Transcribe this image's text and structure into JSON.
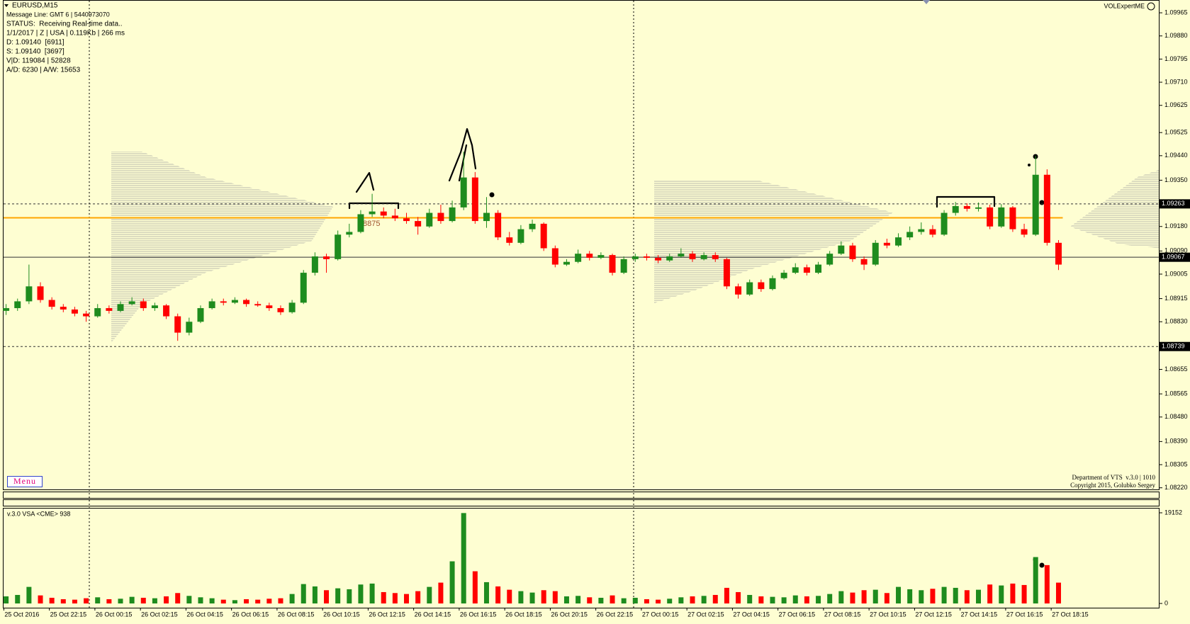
{
  "chart_data": {
    "type": "candlestick",
    "title": "EURUSD,M15",
    "info_lines": [
      "Message Line: GMT 6 | 5440973070",
      "STATUS:  Receiving Real-time data..",
      "1/1/2017 | Z | USA | 0.119Kb | 266 ms",
      "D: 1.09140  [6911]",
      "S: 1.09140  [3697]",
      "V|D: 119084 | 52828",
      "A/D: 6230 | A/W: 15653"
    ],
    "indicator_title": "VOLExpertME",
    "footer_lines": [
      "Department of VTS  v.3.0 | 1010",
      "Copyright 2015, Golubko Sergey"
    ],
    "menu_label": "Menu",
    "annotation": "8875",
    "ylim": [
      1.08214,
      1.10012
    ],
    "yticks": [
      1.09965,
      {
        "value": 1.0988,
        "label": "1.09880"
      },
      1.09795,
      {
        "value": 1.0971,
        "label": "1.09710"
      },
      1.09625,
      1.09525,
      {
        "value": 1.0944,
        "label": "1.09440"
      },
      {
        "value": 1.0935,
        "label": "1.09350"
      },
      {
        "value": 1.0918,
        "label": "1.09180"
      },
      {
        "value": 1.0909,
        "label": "1.09090"
      },
      1.09005,
      1.08915,
      {
        "value": 1.0883,
        "label": "1.08830"
      },
      1.08655,
      1.08565,
      {
        "value": 1.0848,
        "label": "1.08480"
      },
      {
        "value": 1.0839,
        "label": "1.08390"
      },
      1.08305,
      {
        "value": 1.0822,
        "label": "1.08220"
      }
    ],
    "markers": [
      1.09263,
      1.09067,
      1.08739
    ],
    "marker_styles": [
      "dashed",
      "solid",
      "dashed"
    ],
    "level_lines": [
      {
        "value": 1.09212,
        "color": "#ffa500"
      }
    ],
    "up_color": "#1e8c1e",
    "down_color": "#ff0000",
    "candles": [
      [
        1.0887,
        1.08895,
        1.08855,
        1.0888
      ],
      [
        1.0888,
        1.08915,
        1.0887,
        1.08905
      ],
      [
        1.08905,
        1.0904,
        1.08895,
        1.0896
      ],
      [
        1.0896,
        1.08975,
        1.089,
        1.0891
      ],
      [
        1.0891,
        1.0892,
        1.08875,
        1.08885
      ],
      [
        1.08885,
        1.08895,
        1.08865,
        1.08875
      ],
      [
        1.08875,
        1.08885,
        1.0885,
        1.0886
      ],
      [
        1.0886,
        1.0887,
        1.0883,
        1.0885
      ],
      [
        1.0885,
        1.08895,
        1.08845,
        1.0888
      ],
      [
        1.0888,
        1.0889,
        1.0886,
        1.0887
      ],
      [
        1.0887,
        1.08905,
        1.08865,
        1.08895
      ],
      [
        1.08895,
        1.0892,
        1.0889,
        1.08905
      ],
      [
        1.08905,
        1.08915,
        1.0887,
        1.0888
      ],
      [
        1.0888,
        1.089,
        1.0887,
        1.0889
      ],
      [
        1.0889,
        1.08895,
        1.0884,
        1.0885
      ],
      [
        1.0885,
        1.0886,
        1.0876,
        1.0879
      ],
      [
        1.0879,
        1.08845,
        1.0878,
        1.0883
      ],
      [
        1.0883,
        1.0889,
        1.08825,
        1.0888
      ],
      [
        1.0888,
        1.08915,
        1.08875,
        1.08905
      ],
      [
        1.08905,
        1.08915,
        1.0889,
        1.089
      ],
      [
        1.089,
        1.0892,
        1.08895,
        1.0891
      ],
      [
        1.0891,
        1.08915,
        1.08885,
        1.08895
      ],
      [
        1.08895,
        1.08905,
        1.08885,
        1.0889
      ],
      [
        1.0889,
        1.089,
        1.0887,
        1.0888
      ],
      [
        1.0888,
        1.0889,
        1.08855,
        1.08865
      ],
      [
        1.08865,
        1.0891,
        1.0886,
        1.089
      ],
      [
        1.089,
        1.0902,
        1.08895,
        1.0901
      ],
      [
        1.0901,
        1.09085,
        1.09,
        1.0907
      ],
      [
        1.0907,
        1.0908,
        1.0901,
        1.0906
      ],
      [
        1.0906,
        1.09165,
        1.09055,
        1.0915
      ],
      [
        1.0915,
        1.0919,
        1.0914,
        1.0916
      ],
      [
        1.0916,
        1.0924,
        1.09155,
        1.09225
      ],
      [
        1.09225,
        1.093,
        1.09215,
        1.09235
      ],
      [
        1.09235,
        1.0925,
        1.0921,
        1.0922
      ],
      [
        1.0922,
        1.09245,
        1.092,
        1.0921
      ],
      [
        1.0921,
        1.0923,
        1.0919,
        1.092
      ],
      [
        1.092,
        1.09215,
        1.0915,
        1.0918
      ],
      [
        1.0918,
        1.09245,
        1.09175,
        1.0923
      ],
      [
        1.0923,
        1.0926,
        1.0919,
        1.092
      ],
      [
        1.092,
        1.09275,
        1.09195,
        1.0925
      ],
      [
        1.0925,
        1.09455,
        1.0924,
        1.0936
      ],
      [
        1.0936,
        1.0938,
        1.0919,
        1.092
      ],
      [
        1.092,
        1.09288,
        1.09175,
        1.0923
      ],
      [
        1.0923,
        1.0924,
        1.0913,
        1.0914
      ],
      [
        1.0914,
        1.0916,
        1.0911,
        1.0912
      ],
      [
        1.0912,
        1.09185,
        1.09115,
        1.0917
      ],
      [
        1.0917,
        1.09205,
        1.0916,
        1.0919
      ],
      [
        1.0919,
        1.09195,
        1.0909,
        1.091
      ],
      [
        1.091,
        1.0911,
        1.0903,
        1.0904
      ],
      [
        1.0904,
        1.0906,
        1.09035,
        1.0905
      ],
      [
        1.0905,
        1.09095,
        1.09045,
        1.0908
      ],
      [
        1.0908,
        1.0909,
        1.09055,
        1.09065
      ],
      [
        1.09065,
        1.09085,
        1.0906,
        1.09075
      ],
      [
        1.09075,
        1.0908,
        1.09,
        1.0901
      ],
      [
        1.0901,
        1.0907,
        1.09005,
        1.0906
      ],
      [
        1.0906,
        1.0908,
        1.0905,
        1.0907
      ],
      [
        1.0907,
        1.0908,
        1.09055,
        1.09065
      ],
      [
        1.09065,
        1.09075,
        1.09045,
        1.09055
      ],
      [
        1.09055,
        1.0908,
        1.0905,
        1.0907
      ],
      [
        1.0907,
        1.091,
        1.09065,
        1.0908
      ],
      [
        1.0908,
        1.0909,
        1.0905,
        1.0906
      ],
      [
        1.0906,
        1.09085,
        1.09055,
        1.09075
      ],
      [
        1.09075,
        1.09085,
        1.0905,
        1.0906
      ],
      [
        1.0906,
        1.09065,
        1.0895,
        1.0896
      ],
      [
        1.0896,
        1.0897,
        1.08915,
        1.0893
      ],
      [
        1.0893,
        1.08985,
        1.08925,
        1.08975
      ],
      [
        1.08975,
        1.08985,
        1.0894,
        1.0895
      ],
      [
        1.0895,
        1.09,
        1.08945,
        1.0899
      ],
      [
        1.0899,
        1.0902,
        1.08985,
        1.0901
      ],
      [
        1.0901,
        1.09045,
        1.09005,
        1.0903
      ],
      [
        1.0903,
        1.0904,
        1.09,
        1.0901
      ],
      [
        1.0901,
        1.0905,
        1.09005,
        1.0904
      ],
      [
        1.0904,
        1.0909,
        1.09035,
        1.0908
      ],
      [
        1.0908,
        1.09125,
        1.09075,
        1.0911
      ],
      [
        1.0911,
        1.0912,
        1.0905,
        1.0906
      ],
      [
        1.0906,
        1.0907,
        1.0902,
        1.0904
      ],
      [
        1.0904,
        1.0913,
        1.09035,
        1.0912
      ],
      [
        1.0912,
        1.09135,
        1.091,
        1.0911
      ],
      [
        1.0911,
        1.09155,
        1.09105,
        1.0914
      ],
      [
        1.0914,
        1.0918,
        1.0913,
        1.0916
      ],
      [
        1.0916,
        1.09195,
        1.0915,
        1.0917
      ],
      [
        1.0917,
        1.09185,
        1.0914,
        1.0915
      ],
      [
        1.0915,
        1.0924,
        1.09145,
        1.0923
      ],
      [
        1.0923,
        1.0927,
        1.0922,
        1.09255
      ],
      [
        1.09255,
        1.09265,
        1.09235,
        1.09245
      ],
      [
        1.09245,
        1.09268,
        1.09235,
        1.0925
      ],
      [
        1.0925,
        1.0926,
        1.0917,
        1.0918
      ],
      [
        1.0918,
        1.09262,
        1.09175,
        1.0925
      ],
      [
        1.0925,
        1.09255,
        1.0916,
        1.0917
      ],
      [
        1.0917,
        1.0919,
        1.0914,
        1.0915
      ],
      [
        1.0915,
        1.0944,
        1.09145,
        1.0937
      ],
      [
        1.0937,
        1.0939,
        1.0911,
        1.0912
      ],
      [
        1.0912,
        1.0913,
        1.0902,
        1.0904
      ]
    ],
    "volume_title": "v.3.0 VSA <CME> 938",
    "volume_ylim": [
      0,
      19152
    ],
    "volume_yticks": [
      19152,
      0
    ],
    "volumes": [
      1500,
      1800,
      3500,
      1700,
      1200,
      900,
      800,
      1100,
      1300,
      900,
      1000,
      1400,
      1200,
      1100,
      1500,
      2200,
      1600,
      1300,
      1100,
      800,
      700,
      900,
      800,
      1000,
      1100,
      2000,
      4100,
      3600,
      2800,
      3200,
      3000,
      4000,
      4200,
      2400,
      2200,
      2000,
      2600,
      3500,
      4400,
      8900,
      19100,
      6800,
      4500,
      3600,
      2900,
      2600,
      2300,
      2800,
      2600,
      1500,
      1600,
      1300,
      1200,
      1700,
      1100,
      1200,
      900,
      800,
      1000,
      1300,
      1500,
      1600,
      1800,
      3300,
      2400,
      1800,
      1500,
      1400,
      1300,
      1700,
      1500,
      1600,
      2000,
      2600,
      2300,
      2800,
      2900,
      2200,
      3500,
      3000,
      2800,
      3100,
      3500,
      3300,
      2800,
      2900,
      4000,
      3800,
      4200,
      3900,
      9800,
      8100,
      4400
    ],
    "time_labels": [
      "25 Oct 2016",
      "25 Oct 22:15",
      "26 Oct 00:15",
      "26 Oct 02:15",
      "26 Oct 04:15",
      "26 Oct 06:15",
      "26 Oct 08:15",
      "26 Oct 10:15",
      "26 Oct 12:15",
      "26 Oct 14:15",
      "26 Oct 16:15",
      "26 Oct 18:15",
      "26 Oct 20:15",
      "26 Oct 22:15",
      "27 Oct 00:15",
      "27 Oct 02:15",
      "27 Oct 04:15",
      "27 Oct 06:15",
      "27 Oct 08:15",
      "27 Oct 10:15",
      "27 Oct 12:15",
      "27 Oct 14:15",
      "27 Oct 16:15",
      "27 Oct 18:15"
    ]
  }
}
